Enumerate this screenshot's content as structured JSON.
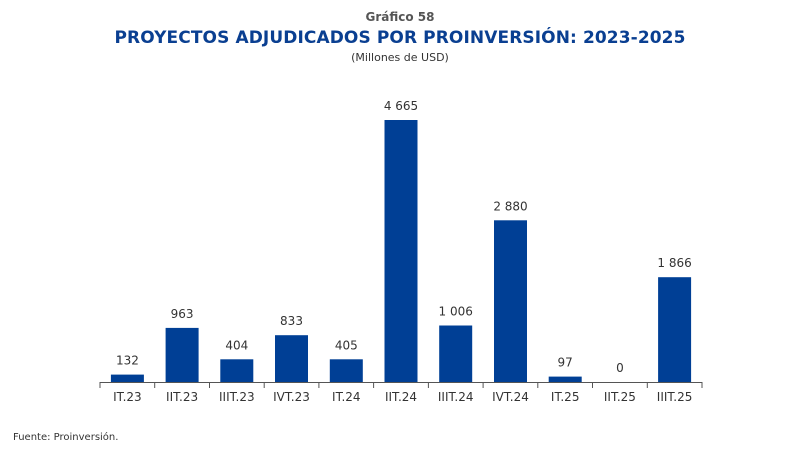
{
  "header": {
    "kicker": "Gráfico 58",
    "title": "PROYECTOS ADJUDICADOS POR PROINVERSIÓN: 2023-2025",
    "subtitle": "(Millones de USD)"
  },
  "footer": {
    "source": "Fuente: Proinversión."
  },
  "colors": {
    "bar": "#003f95",
    "title": "#0a3f91",
    "axis": "#555555"
  },
  "chart_data": {
    "type": "bar",
    "title": "PROYECTOS ADJUDICADOS POR PROINVERSIÓN: 2023-2025",
    "subtitle": "(Millones de USD)",
    "xlabel": "",
    "ylabel": "Millones de USD",
    "grid": false,
    "legend": "none",
    "ylim": [
      0,
      4665
    ],
    "categories": [
      "IT.23",
      "IIT.23",
      "IIIT.23",
      "IVT.23",
      "IT.24",
      "IIT.24",
      "IIIT.24",
      "IVT.24",
      "IT.25",
      "IIT.25",
      "IIIT.25"
    ],
    "values": [
      132,
      963,
      404,
      833,
      405,
      4665,
      1006,
      2880,
      97,
      0,
      1866
    ],
    "value_labels": [
      "132",
      "963",
      "404",
      "833",
      "405",
      "4 665",
      "1 006",
      "2 880",
      "97",
      "0",
      "1 866"
    ]
  }
}
